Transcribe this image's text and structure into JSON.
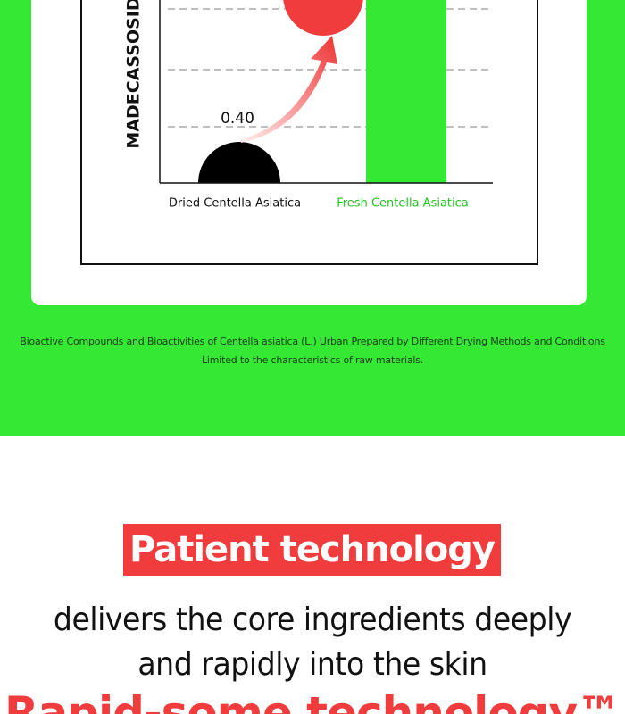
{
  "chart": {
    "axis_label": "MADECASSOSIDE",
    "dried_value_label": "0.40",
    "categories": [
      "Dried Centella Asiatica",
      "Fresh Centella Asiatica"
    ]
  },
  "caption": [
    "Bioactive Compounds and Bioactivities of Centella asiatica (L.) Urban Prepared by Different Drying Methods and Conditions",
    "Limited to the characteristics of raw materials."
  ],
  "section": {
    "tag": "Patient technology",
    "lines": [
      "delivers the core ingredients deeply",
      "and rapidly into the skin"
    ],
    "technology": "Rapid-some technology™"
  }
}
